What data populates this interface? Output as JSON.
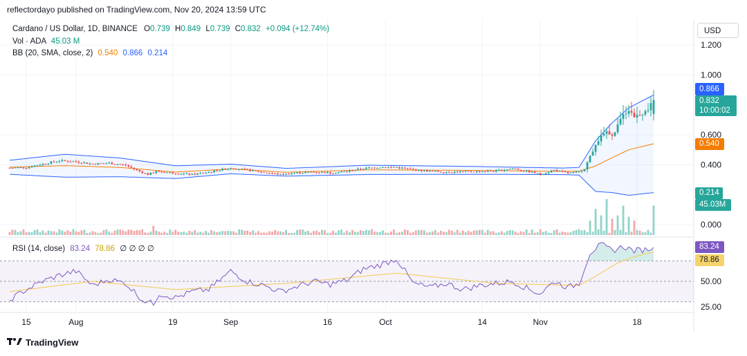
{
  "header": {
    "credit": "reflectordayo published on TradingView.com, Nov 20, 2024 13:59 UTC"
  },
  "legend": {
    "symbol": "Cardano / US Dollar, 1D, BINANCE",
    "o_label": "O",
    "o": "0.739",
    "h_label": "H",
    "h": "0.849",
    "l_label": "L",
    "l": "0.739",
    "c_label": "C",
    "c": "0.832",
    "change": "+0.094 (+12.74%)",
    "vol_label": "Vol · ADA",
    "vol": "45.03 M",
    "bb_label": "BB (20, SMA, close, 2)",
    "bb_basis": "0.540",
    "bb_upper": "0.866",
    "bb_lower": "0.214",
    "rsi_label": "RSI (14, close)",
    "rsi": "83.24",
    "rsi_ma": "78.86",
    "rsi_extra": "∅ ∅ ∅ ∅"
  },
  "toolbar": {
    "currency": "USD"
  },
  "price_tags": {
    "upper": "0.866",
    "last": "0.832",
    "countdown": "10:00:02",
    "basis": "0.540",
    "lower": "0.214",
    "volume": "45.03M",
    "rsi": "83.24",
    "rsi_ma": "78.86"
  },
  "footer": {
    "brand": "TradingView",
    "logo_icon": "tradingview-logo-icon"
  },
  "colors": {
    "up": "#26a69a",
    "down": "#ef5350",
    "bb": "#2962ff",
    "basis": "#f57c00",
    "rsi": "#7e57c2",
    "rsi_ma": "#f2c94c",
    "vol_up": "#8fd3c9",
    "vol_down": "#f4a6a6"
  },
  "chart_data": {
    "type": "candlestick",
    "price_axis": {
      "ticks": [
        "1.200",
        "1.000",
        "0.600",
        "0.400",
        "0.000"
      ],
      "range": [
        0.0,
        1.28
      ]
    },
    "rsi_axis": {
      "ticks": [
        "50.00",
        "25.00"
      ],
      "range": [
        20,
        90
      ],
      "bands": [
        30,
        70
      ]
    },
    "x_tick_labels": [
      "15",
      "Aug",
      "19",
      "Sep",
      "16",
      "Oct",
      "14",
      "Nov",
      "18"
    ],
    "x_tick_index": [
      6,
      24,
      59,
      80,
      115,
      136,
      171,
      192,
      227
    ],
    "bars": 234,
    "anchors": [
      [
        0,
        0.379
      ],
      [
        6,
        0.382
      ],
      [
        12,
        0.405
      ],
      [
        18,
        0.427
      ],
      [
        24,
        0.421
      ],
      [
        30,
        0.405
      ],
      [
        36,
        0.411
      ],
      [
        42,
        0.397
      ],
      [
        46,
        0.363
      ],
      [
        50,
        0.335
      ],
      [
        53,
        0.355
      ],
      [
        59,
        0.345
      ],
      [
        66,
        0.335
      ],
      [
        72,
        0.351
      ],
      [
        80,
        0.379
      ],
      [
        86,
        0.365
      ],
      [
        92,
        0.349
      ],
      [
        98,
        0.335
      ],
      [
        104,
        0.346
      ],
      [
        110,
        0.352
      ],
      [
        116,
        0.346
      ],
      [
        122,
        0.356
      ],
      [
        128,
        0.375
      ],
      [
        134,
        0.384
      ],
      [
        140,
        0.383
      ],
      [
        146,
        0.366
      ],
      [
        152,
        0.357
      ],
      [
        158,
        0.352
      ],
      [
        164,
        0.354
      ],
      [
        170,
        0.355
      ],
      [
        176,
        0.359
      ],
      [
        182,
        0.375
      ],
      [
        188,
        0.354
      ],
      [
        192,
        0.337
      ],
      [
        197,
        0.364
      ],
      [
        202,
        0.344
      ],
      [
        206,
        0.351
      ],
      [
        208,
        0.375
      ],
      [
        210,
        0.455
      ],
      [
        212,
        0.53
      ],
      [
        214,
        0.598
      ],
      [
        216,
        0.615
      ],
      [
        218,
        0.585
      ],
      [
        220,
        0.665
      ],
      [
        222,
        0.732
      ],
      [
        224,
        0.768
      ],
      [
        226,
        0.725
      ],
      [
        228,
        0.739
      ],
      [
        230,
        0.749
      ],
      [
        233,
        0.832
      ]
    ],
    "bollinger": {
      "basis_anchors": [
        [
          0,
          0.384
        ],
        [
          20,
          0.394
        ],
        [
          40,
          0.382
        ],
        [
          60,
          0.351
        ],
        [
          80,
          0.372
        ],
        [
          100,
          0.35
        ],
        [
          130,
          0.366
        ],
        [
          170,
          0.362
        ],
        [
          200,
          0.356
        ],
        [
          206,
          0.357
        ],
        [
          212,
          0.392
        ],
        [
          218,
          0.447
        ],
        [
          224,
          0.5
        ],
        [
          233,
          0.54
        ]
      ],
      "upper_anchors": [
        [
          0,
          0.43
        ],
        [
          20,
          0.47
        ],
        [
          40,
          0.445
        ],
        [
          60,
          0.393
        ],
        [
          80,
          0.404
        ],
        [
          100,
          0.376
        ],
        [
          130,
          0.397
        ],
        [
          170,
          0.388
        ],
        [
          200,
          0.378
        ],
        [
          206,
          0.382
        ],
        [
          212,
          0.56
        ],
        [
          218,
          0.68
        ],
        [
          224,
          0.78
        ],
        [
          233,
          0.866
        ]
      ],
      "lower_anchors": [
        [
          0,
          0.336
        ],
        [
          20,
          0.317
        ],
        [
          40,
          0.32
        ],
        [
          60,
          0.308
        ],
        [
          80,
          0.34
        ],
        [
          100,
          0.324
        ],
        [
          130,
          0.335
        ],
        [
          170,
          0.336
        ],
        [
          200,
          0.334
        ],
        [
          206,
          0.331
        ],
        [
          212,
          0.222
        ],
        [
          218,
          0.214
        ],
        [
          224,
          0.196
        ],
        [
          233,
          0.214
        ]
      ]
    },
    "rsi_anchors": [
      [
        0,
        32
      ],
      [
        6,
        42
      ],
      [
        12,
        50
      ],
      [
        18,
        56
      ],
      [
        24,
        60
      ],
      [
        30,
        46
      ],
      [
        36,
        52
      ],
      [
        42,
        48
      ],
      [
        48,
        32
      ],
      [
        52,
        28
      ],
      [
        54,
        38
      ],
      [
        60,
        34
      ],
      [
        66,
        40
      ],
      [
        72,
        42
      ],
      [
        80,
        60
      ],
      [
        86,
        50
      ],
      [
        92,
        46
      ],
      [
        98,
        40
      ],
      [
        104,
        45
      ],
      [
        110,
        50
      ],
      [
        116,
        47
      ],
      [
        122,
        51
      ],
      [
        128,
        62
      ],
      [
        134,
        66
      ],
      [
        140,
        72
      ],
      [
        146,
        48
      ],
      [
        152,
        44
      ],
      [
        158,
        48
      ],
      [
        164,
        42
      ],
      [
        170,
        46
      ],
      [
        176,
        48
      ],
      [
        182,
        50
      ],
      [
        188,
        42
      ],
      [
        192,
        38
      ],
      [
        197,
        50
      ],
      [
        202,
        44
      ],
      [
        206,
        48
      ],
      [
        210,
        78
      ],
      [
        214,
        86
      ],
      [
        218,
        80
      ],
      [
        222,
        84
      ],
      [
        226,
        80
      ],
      [
        230,
        81
      ],
      [
        233,
        83.24
      ]
    ],
    "rsi_ma_anchors": [
      [
        0,
        40
      ],
      [
        30,
        50
      ],
      [
        60,
        42
      ],
      [
        100,
        48
      ],
      [
        140,
        58
      ],
      [
        176,
        48
      ],
      [
        206,
        46
      ],
      [
        212,
        55
      ],
      [
        220,
        68
      ],
      [
        226,
        74
      ],
      [
        233,
        78.86
      ]
    ],
    "volume_profile": {
      "base_M": 6,
      "spikes": [
        [
          52,
          14
        ],
        [
          210,
          22
        ],
        [
          212,
          40
        ],
        [
          214,
          30
        ],
        [
          216,
          55
        ],
        [
          218,
          25
        ],
        [
          220,
          30
        ],
        [
          222,
          45
        ],
        [
          224,
          28
        ],
        [
          226,
          22
        ],
        [
          233,
          45.03
        ]
      ]
    }
  }
}
